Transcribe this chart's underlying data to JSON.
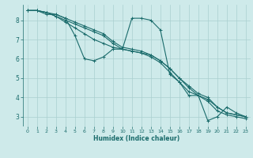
{
  "title": "",
  "xlabel": "Humidex (Indice chaleur)",
  "background_color": "#ceeaea",
  "grid_color": "#aacfcf",
  "line_color": "#1a6b6b",
  "xlim": [
    -0.5,
    23.5
  ],
  "ylim": [
    2.5,
    8.8
  ],
  "xticks": [
    0,
    1,
    2,
    3,
    4,
    5,
    6,
    7,
    8,
    9,
    10,
    11,
    12,
    13,
    14,
    15,
    16,
    17,
    18,
    19,
    20,
    21,
    22,
    23
  ],
  "yticks": [
    3,
    4,
    5,
    6,
    7,
    8
  ],
  "series": [
    {
      "x": [
        0,
        1,
        2,
        3,
        4,
        5,
        6,
        7,
        8,
        9,
        10,
        11,
        12,
        13,
        14,
        15,
        16,
        17,
        18,
        19,
        20,
        21,
        22,
        23
      ],
      "y": [
        8.5,
        8.5,
        8.3,
        8.3,
        8.1,
        7.2,
        6.0,
        5.9,
        6.1,
        6.5,
        6.5,
        8.1,
        8.1,
        8.0,
        7.5,
        5.2,
        4.8,
        4.1,
        4.1,
        2.8,
        3.0,
        3.5,
        3.2,
        3.0
      ]
    },
    {
      "x": [
        0,
        1,
        2,
        3,
        4,
        5,
        6,
        7,
        8,
        9,
        10,
        11,
        12,
        13,
        14,
        15,
        16,
        17,
        18,
        19,
        20,
        21,
        22,
        23
      ],
      "y": [
        8.5,
        8.5,
        8.4,
        8.2,
        8.0,
        7.8,
        7.6,
        7.4,
        7.2,
        6.8,
        6.5,
        6.4,
        6.3,
        6.2,
        5.9,
        5.5,
        5.0,
        4.5,
        4.1,
        3.9,
        3.5,
        3.2,
        3.1,
        3.0
      ]
    },
    {
      "x": [
        0,
        1,
        2,
        3,
        4,
        5,
        6,
        7,
        8,
        9,
        10,
        11,
        12,
        13,
        14,
        15,
        16,
        17,
        18,
        19,
        20,
        21,
        22,
        23
      ],
      "y": [
        8.5,
        8.5,
        8.4,
        8.2,
        7.9,
        7.6,
        7.3,
        7.0,
        6.8,
        6.6,
        6.5,
        6.4,
        6.3,
        6.1,
        5.8,
        5.3,
        4.8,
        4.3,
        4.1,
        3.8,
        3.3,
        3.1,
        3.0,
        2.9
      ]
    },
    {
      "x": [
        0,
        1,
        2,
        3,
        4,
        5,
        6,
        7,
        8,
        9,
        10,
        11,
        12,
        13,
        14,
        15,
        16,
        17,
        18,
        19,
        20,
        21,
        22,
        23
      ],
      "y": [
        8.5,
        8.5,
        8.4,
        8.3,
        8.1,
        7.9,
        7.7,
        7.5,
        7.3,
        6.9,
        6.6,
        6.5,
        6.4,
        6.2,
        5.9,
        5.5,
        5.0,
        4.6,
        4.2,
        4.0,
        3.5,
        3.2,
        3.1,
        3.0
      ]
    }
  ]
}
